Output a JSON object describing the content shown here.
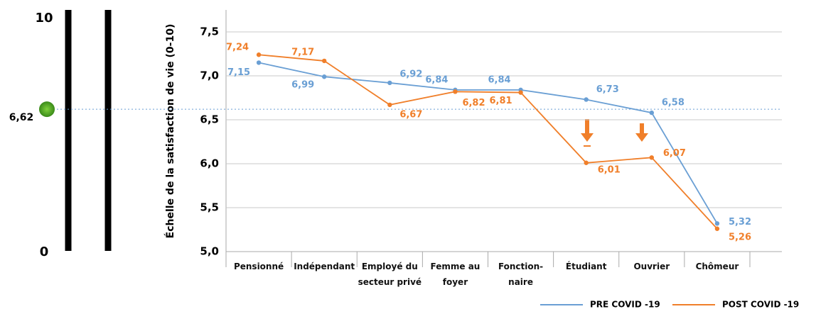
{
  "ladder": {
    "max": 10,
    "min": 0
  },
  "chart_data": {
    "type": "line",
    "y_label": "Échelle de la satisfaction de vie (0-10)",
    "categories": [
      "Pensionné",
      "Indépendant",
      "Employé du\nsecteur privé",
      "Femme au\nfoyer",
      "Fonction-\nnaire",
      "Étudiant",
      "Ouvrier",
      "Chômeur"
    ],
    "series": [
      {
        "name": "PRE COVID -19",
        "color": "#6a9fd4",
        "values": [
          7.15,
          6.99,
          6.92,
          6.84,
          6.84,
          6.73,
          6.58,
          5.32
        ],
        "value_labels": [
          "7,15",
          "6,99",
          "6,92",
          "6,84",
          "6,84",
          "6,73",
          "6,58",
          "5,32"
        ]
      },
      {
        "name": "POST COVID -19",
        "color": "#f07f2a",
        "values": [
          7.24,
          7.17,
          6.67,
          6.82,
          6.81,
          6.01,
          6.07,
          5.26
        ],
        "value_labels": [
          "7,24",
          "7,17",
          "6,67",
          "6,82",
          "6,81",
          "6,01",
          "6,07",
          "5,26"
        ]
      }
    ],
    "reference": {
      "value": 6.62,
      "label": "6,62"
    },
    "ylim": [
      5,
      7.75
    ],
    "yticks": [
      {
        "value": 5,
        "label": "5,0"
      },
      {
        "value": 5.5,
        "label": "5,5"
      },
      {
        "value": 6,
        "label": "6,0"
      },
      {
        "value": 6.5,
        "label": "6,5"
      },
      {
        "value": 7,
        "label": "7,0"
      },
      {
        "value": 7.5,
        "label": "7,5"
      }
    ],
    "grid": true
  }
}
